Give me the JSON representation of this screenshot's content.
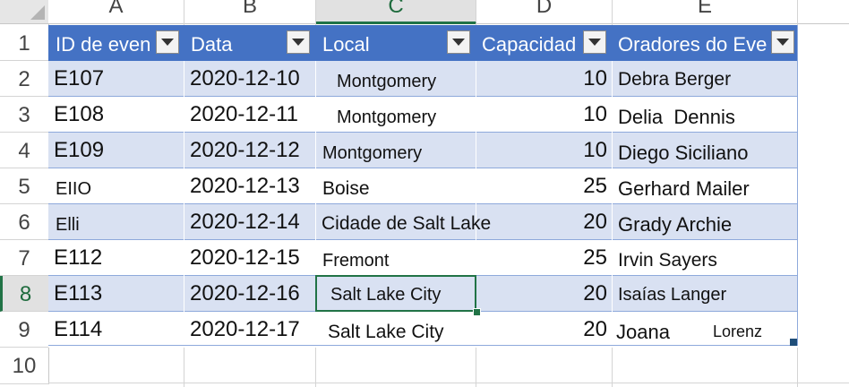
{
  "columns": [
    "A",
    "B",
    "C",
    "D",
    "E"
  ],
  "rows": [
    "1",
    "2",
    "3",
    "4",
    "5",
    "6",
    "7",
    "8",
    "9",
    "10"
  ],
  "selected_cell": {
    "column": "C",
    "row": "8"
  },
  "table": {
    "headers": [
      "ID de even",
      "Data",
      "Local",
      "Capacidad",
      "Oradores do Eve"
    ],
    "records": [
      {
        "id": "E107",
        "date": "2020-12-10",
        "location": "Montgomery",
        "capacity": "10",
        "speakers": "Debra Berger"
      },
      {
        "id": "E108",
        "date": "2020-12-11",
        "location": "Montgomery",
        "capacity": "10",
        "speakers": "Delia  Dennis"
      },
      {
        "id": "E109",
        "date": "2020-12-12",
        "location": "Montgomery",
        "capacity": "10",
        "speakers": "Diego Siciliano"
      },
      {
        "id": "EIIO",
        "date": "2020-12-13",
        "location": "Boise",
        "capacity": "25",
        "speakers": "Gerhard Mailer"
      },
      {
        "id": "Elli",
        "date": "2020-12-14",
        "location": "Cidade de Salt Lake",
        "capacity": "20",
        "speakers": "Grady Archie"
      },
      {
        "id": "E112",
        "date": "2020-12-15",
        "location": "Fremont",
        "capacity": "25",
        "speakers": "Irvin Sayers"
      },
      {
        "id": "E113",
        "date": "2020-12-16",
        "location": "Salt Lake City",
        "capacity": "20",
        "speakers": "Isaías Langer"
      },
      {
        "id": "E114",
        "date": "2020-12-17",
        "location": "Salt Lake City",
        "capacity": "20",
        "speakers": "Joana"
      }
    ],
    "last_row_extra": "Lorenz"
  },
  "colors": {
    "header_fill": "#4472c4",
    "band_fill": "#d9e1f2",
    "selection": "#217346"
  },
  "icons": {
    "filter": "filter-dropdown-icon",
    "select_all": "select-all-icon"
  }
}
